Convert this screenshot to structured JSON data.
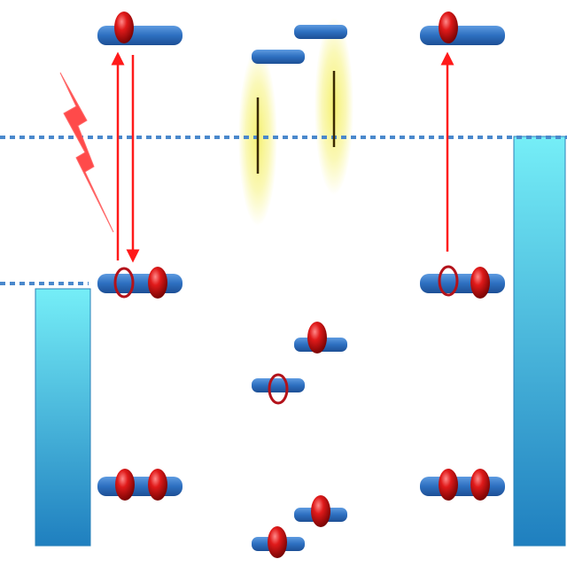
{
  "colors": {
    "background": "#ffffff",
    "level_blue": "#2d6fc0",
    "electron_red": "#c4141a",
    "hole_red": "#b3121a",
    "arrow_red": "#ff1a1a",
    "dashed_line": "#4a88cc",
    "band_top": "#75eef7",
    "band_bottom": "#1f7fbf",
    "glow_yellow": "#f4ef5c",
    "excitation_bolt": "#ff4a4a"
  },
  "diagram": {
    "elements": [
      {
        "kind": "band",
        "name": "left-band",
        "fill": "gradient"
      },
      {
        "kind": "band",
        "name": "right-band",
        "fill": "gradient"
      },
      {
        "kind": "dashed-line",
        "name": "right-level-dashed-line"
      },
      {
        "kind": "dashed-line",
        "name": "left-level-dashed-line"
      },
      {
        "kind": "glow",
        "name": "glow-left"
      },
      {
        "kind": "glow",
        "name": "glow-right"
      },
      {
        "kind": "level",
        "name": "left-top-level",
        "electrons": 1,
        "holes": 0
      },
      {
        "kind": "level",
        "name": "left-mid-level",
        "electrons": 1,
        "holes": 1
      },
      {
        "kind": "level",
        "name": "left-bottom-level",
        "electrons": 2,
        "holes": 0
      },
      {
        "kind": "level",
        "name": "right-top-level",
        "electrons": 1,
        "holes": 0
      },
      {
        "kind": "level",
        "name": "right-mid-level",
        "electrons": 1,
        "holes": 1
      },
      {
        "kind": "level",
        "name": "right-bottom-level",
        "electrons": 2,
        "holes": 0
      },
      {
        "kind": "level",
        "name": "center-upper-left-level",
        "electrons": 0,
        "holes": 0
      },
      {
        "kind": "level",
        "name": "center-upper-right-level",
        "electrons": 0,
        "holes": 0
      },
      {
        "kind": "level",
        "name": "center-mid-right-level",
        "electrons": 1,
        "holes": 0
      },
      {
        "kind": "level",
        "name": "center-mid-left-level",
        "electrons": 0,
        "holes": 1
      },
      {
        "kind": "level",
        "name": "center-low-right-level",
        "electrons": 1,
        "holes": 0
      },
      {
        "kind": "level",
        "name": "center-low-left-level",
        "electrons": 1,
        "holes": 0
      },
      {
        "kind": "arrow",
        "name": "left-excitation-arrow",
        "direction": "up"
      },
      {
        "kind": "arrow",
        "name": "left-relaxation-arrow",
        "direction": "down"
      },
      {
        "kind": "arrow",
        "name": "right-excitation-arrow",
        "direction": "up"
      },
      {
        "kind": "bolt",
        "name": "lightning-bolt-icon"
      }
    ]
  }
}
